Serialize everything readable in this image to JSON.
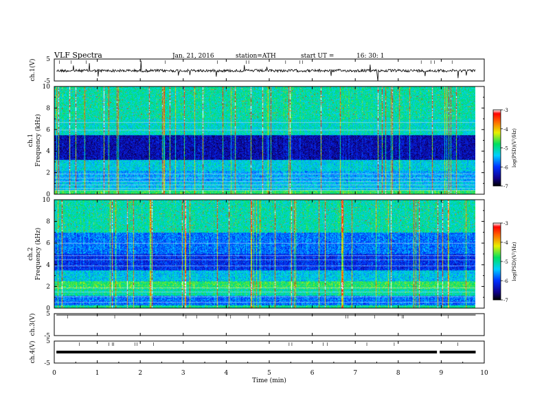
{
  "header": {
    "title": "VLF Spectra",
    "date": "Jan. 21, 2016",
    "station": "station=ATH",
    "start_label": "start UT =",
    "start_time": "16: 30: 1"
  },
  "chart_data": [
    {
      "type": "line",
      "panel": "ch1-waveform",
      "ylabel": "ch.1(V)",
      "ylim": [
        -5,
        5
      ],
      "yticks": [
        5,
        -5
      ],
      "xlim": [
        0,
        10
      ],
      "baseline": 0
    },
    {
      "type": "heatmap",
      "panel": "ch1-spectrogram",
      "ylabel_channel": "ch.1",
      "ylabel": "Frequency (kHz)",
      "ylim": [
        0,
        10
      ],
      "yticks": [
        0,
        2,
        4,
        6,
        8,
        10
      ],
      "xlim": [
        0,
        9.8
      ],
      "colorbar": {
        "label": "log(PSD)(V²/Hz)",
        "range": [
          -7,
          -3
        ],
        "ticks": [
          -3,
          -4,
          -5,
          -6,
          -7
        ]
      }
    },
    {
      "type": "heatmap",
      "panel": "ch2-spectrogram",
      "ylabel_channel": "ch.2",
      "ylabel": "Frequency (kHz)",
      "ylim": [
        0,
        10
      ],
      "yticks": [
        0,
        2,
        4,
        6,
        8,
        10
      ],
      "xlim": [
        0,
        9.8
      ],
      "colorbar": {
        "label": "log(PSD)(V²/Hz)",
        "range": [
          -7,
          -3
        ],
        "ticks": [
          -3,
          -4,
          -5,
          -6,
          -7
        ]
      }
    },
    {
      "type": "line",
      "panel": "ch3-waveform",
      "ylabel": "ch.3(V)",
      "ylim": [
        -5,
        5
      ],
      "yticks": [
        5,
        -5
      ],
      "xlim": [
        0,
        10
      ],
      "baseline": 5
    },
    {
      "type": "line",
      "panel": "ch4-waveform",
      "ylabel": "ch.4(V)",
      "ylim": [
        -5,
        5
      ],
      "yticks": [
        5,
        -5
      ],
      "xlim": [
        0,
        10
      ],
      "baseline": 0
    }
  ],
  "xaxis": {
    "label": "Time (min)",
    "range": [
      0,
      10
    ],
    "ticks": [
      0,
      1,
      2,
      3,
      4,
      5,
      6,
      7,
      8,
      9,
      10
    ]
  }
}
